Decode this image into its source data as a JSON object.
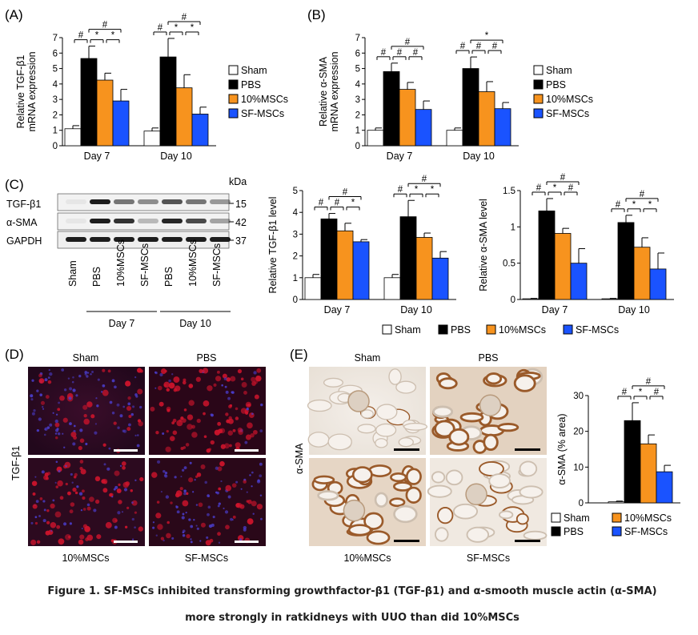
{
  "panels": {
    "a": "(A)",
    "b": "(B)",
    "c": "(C)",
    "d": "(D)",
    "e": "(E)"
  },
  "groups": [
    "Sham",
    "PBS",
    "10%MSCs",
    "SF-MSCs"
  ],
  "colors": {
    "Sham": "#ffffff",
    "PBS": "#000000",
    "10%MSCs": "#f7931e",
    "SF-MSCs": "#1a53ff"
  },
  "days": [
    "Day 7",
    "Day 10"
  ],
  "blot": {
    "kda": "kDa",
    "rows": [
      {
        "label": "TGF-β1",
        "size": "15"
      },
      {
        "label": "α-SMA",
        "size": "42"
      },
      {
        "label": "GAPDH",
        "size": "37"
      }
    ],
    "lanes": [
      "Sham",
      "PBS",
      "10%MSCs",
      "SF-MSCs",
      "PBS",
      "10%MSCs",
      "SF-MSCs"
    ],
    "lane_groups": [
      "Day 7",
      "Day 10"
    ]
  },
  "micro_d": {
    "labels": [
      "Sham",
      "PBS",
      "10%MSCs",
      "SF-MSCs"
    ],
    "row_label": "TGF-β1"
  },
  "micro_e": {
    "labels": [
      "Sham",
      "PBS",
      "10%MSCs",
      "SF-MSCs"
    ],
    "row_label": "α-SMA"
  },
  "caption": "Figure 1. SF-MSCs inhibited transforming growthfactor-β1 (TGF-β1) and α-smooth muscle actin (α-SMA) more strongly in ratkidneys with UUO than did 10%MSCs",
  "chart_data": [
    {
      "panel": "A",
      "type": "bar",
      "categories": [
        "Day 7",
        "Day 10"
      ],
      "ylabel": "Relative TGF-β1 mRNA expression",
      "ylim": [
        0,
        7
      ],
      "yticks": [
        0,
        1,
        2,
        3,
        4,
        5,
        6,
        7
      ],
      "series": [
        {
          "name": "Sham",
          "values": [
            1.1,
            0.95
          ],
          "err": [
            0.2,
            0.2
          ]
        },
        {
          "name": "PBS",
          "values": [
            5.65,
            5.75
          ],
          "err": [
            0.8,
            1.2
          ]
        },
        {
          "name": "10%MSCs",
          "values": [
            4.25,
            3.75
          ],
          "err": [
            0.45,
            0.85
          ]
        },
        {
          "name": "SF-MSCs",
          "values": [
            2.9,
            2.05
          ],
          "err": [
            0.75,
            0.45
          ]
        }
      ],
      "legend": "right",
      "annotations": [
        "#",
        "*",
        "*",
        "#",
        "#",
        "*",
        "*",
        "#"
      ]
    },
    {
      "panel": "B",
      "type": "bar",
      "categories": [
        "Day 7",
        "Day 10"
      ],
      "ylabel": "Relative α-SMA mRNA expression",
      "ylim": [
        0,
        7
      ],
      "yticks": [
        0,
        1,
        2,
        3,
        4,
        5,
        6,
        7
      ],
      "series": [
        {
          "name": "Sham",
          "values": [
            1.0,
            1.0
          ],
          "err": [
            0.15,
            0.15
          ]
        },
        {
          "name": "PBS",
          "values": [
            4.8,
            5.0
          ],
          "err": [
            0.55,
            0.75
          ]
        },
        {
          "name": "10%MSCs",
          "values": [
            3.65,
            3.5
          ],
          "err": [
            0.45,
            0.65
          ]
        },
        {
          "name": "SF-MSCs",
          "values": [
            2.35,
            2.4
          ],
          "err": [
            0.55,
            0.4
          ]
        }
      ],
      "legend": "right",
      "annotations": [
        "#",
        "#",
        "#",
        "#",
        "#",
        "#",
        "#",
        "*"
      ]
    },
    {
      "panel": "C1",
      "type": "bar",
      "categories": [
        "Day 7",
        "Day 10"
      ],
      "ylabel": "Relative TGF-β1 level",
      "ylim": [
        0,
        5
      ],
      "yticks": [
        0,
        1,
        2,
        3,
        4,
        5
      ],
      "series": [
        {
          "name": "Sham",
          "values": [
            1.0,
            1.0
          ],
          "err": [
            0.15,
            0.15
          ]
        },
        {
          "name": "PBS",
          "values": [
            3.7,
            3.8
          ],
          "err": [
            0.25,
            0.75
          ]
        },
        {
          "name": "10%MSCs",
          "values": [
            3.15,
            2.85
          ],
          "err": [
            0.35,
            0.2
          ]
        },
        {
          "name": "SF-MSCs",
          "values": [
            2.65,
            1.9
          ],
          "err": [
            0.1,
            0.3
          ]
        }
      ],
      "legend": "bottom",
      "annotations": [
        "#",
        "#",
        "*",
        "#",
        "#",
        "*",
        "*",
        "#"
      ]
    },
    {
      "panel": "C2",
      "type": "bar",
      "categories": [
        "Day 7",
        "Day 10"
      ],
      "ylabel": "Relative α-SMA level",
      "ylim": [
        0,
        1.5
      ],
      "yticks": [
        0,
        0.5,
        1,
        1.5
      ],
      "series": [
        {
          "name": "Sham",
          "values": [
            0.01,
            0.01
          ],
          "err": [
            0.005,
            0.005
          ]
        },
        {
          "name": "PBS",
          "values": [
            1.22,
            1.06
          ],
          "err": [
            0.17,
            0.1
          ]
        },
        {
          "name": "10%MSCs",
          "values": [
            0.91,
            0.72
          ],
          "err": [
            0.07,
            0.13
          ]
        },
        {
          "name": "SF-MSCs",
          "values": [
            0.5,
            0.42
          ],
          "err": [
            0.2,
            0.22
          ]
        }
      ],
      "legend": "bottom",
      "annotations": [
        "#",
        "*",
        "#",
        "#",
        "#",
        "*",
        "*",
        "#"
      ]
    },
    {
      "panel": "E",
      "type": "bar",
      "categories": [
        ""
      ],
      "ylabel": "α-SMA (% area)",
      "ylim": [
        0,
        30
      ],
      "yticks": [
        0,
        10,
        20,
        30
      ],
      "series": [
        {
          "name": "Sham",
          "values": [
            0.3
          ],
          "err": [
            0.2
          ]
        },
        {
          "name": "PBS",
          "values": [
            23
          ],
          "err": [
            5
          ]
        },
        {
          "name": "10%MSCs",
          "values": [
            16.5
          ],
          "err": [
            2.5
          ]
        },
        {
          "name": "SF-MSCs",
          "values": [
            8.7
          ],
          "err": [
            1.8
          ]
        }
      ],
      "legend": "bottom",
      "annotations": [
        "#",
        "*",
        "#",
        "#"
      ]
    }
  ]
}
